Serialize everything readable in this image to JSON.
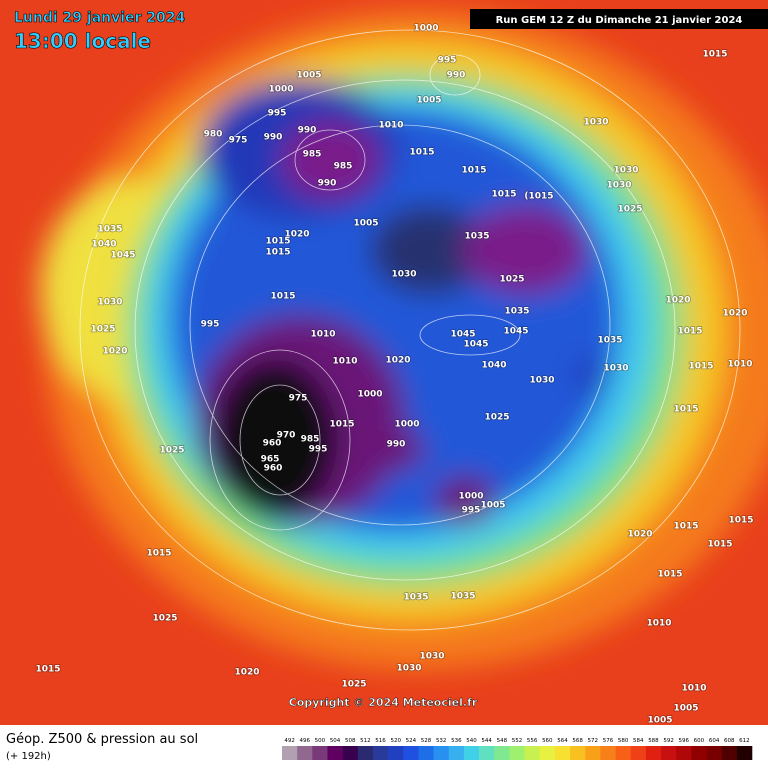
{
  "header": {
    "date": "Lundi 29 janvier 2024",
    "time": "13:00 locale",
    "run": "Run GEM 12 Z du Dimanche 21 janvier 2024"
  },
  "isobar_labels": [
    1000,
    995,
    990,
    1005,
    1005,
    1000,
    995,
    1010,
    980,
    975,
    990,
    990,
    985,
    985,
    990,
    1015,
    1015,
    1030,
    1015,
    "(1015",
    1030,
    1030,
    1025,
    1035,
    1040,
    1045,
    1020,
    1015,
    1015,
    1005,
    1035,
    1030,
    1025,
    1030,
    1015,
    1035,
    1020,
    1020,
    1025,
    995,
    1020,
    1010,
    1045,
    1045,
    1045,
    1015,
    1035,
    1010,
    1020,
    1040,
    1030,
    1015,
    1010,
    1030,
    975,
    1000,
    1015,
    1025,
    1015,
    970,
    985,
    1000,
    990,
    960,
    1025,
    965,
    960,
    995,
    1000,
    995,
    1005,
    1015,
    1015,
    1020,
    1015,
    1015,
    1015,
    1035,
    1035,
    1025,
    1010,
    1030,
    1030,
    1015,
    1020,
    1025,
    1010,
    1005,
    1015,
    1005
  ],
  "footer": {
    "copyright": "Copyright © 2024 Meteociel.fr",
    "legend_title": "Géop. Z500 & pression au sol",
    "legend_subtitle": "(+ 192h)"
  },
  "colorbar": {
    "ticks": [
      492,
      496,
      500,
      504,
      508,
      512,
      516,
      520,
      524,
      528,
      532,
      536,
      540,
      544,
      548,
      552,
      556,
      560,
      564,
      568,
      572,
      576,
      580,
      584,
      588,
      592,
      596,
      600,
      604,
      608,
      612
    ],
    "colors": [
      "#b0a0b0",
      "#906890",
      "#7a3a7a",
      "#600060",
      "#3a0050",
      "#2a2a70",
      "#2a3a9a",
      "#2040c0",
      "#2050e0",
      "#1e6ee8",
      "#2890f0",
      "#38b0f0",
      "#40d0e8",
      "#60e0c0",
      "#80e890",
      "#a0f070",
      "#c8f050",
      "#e8f040",
      "#f8e030",
      "#f8c020",
      "#f8a018",
      "#f88018",
      "#f86018",
      "#f04018",
      "#e02010",
      "#c81010",
      "#b00808",
      "#900000",
      "#780000",
      "#500000",
      "#200000"
    ]
  }
}
